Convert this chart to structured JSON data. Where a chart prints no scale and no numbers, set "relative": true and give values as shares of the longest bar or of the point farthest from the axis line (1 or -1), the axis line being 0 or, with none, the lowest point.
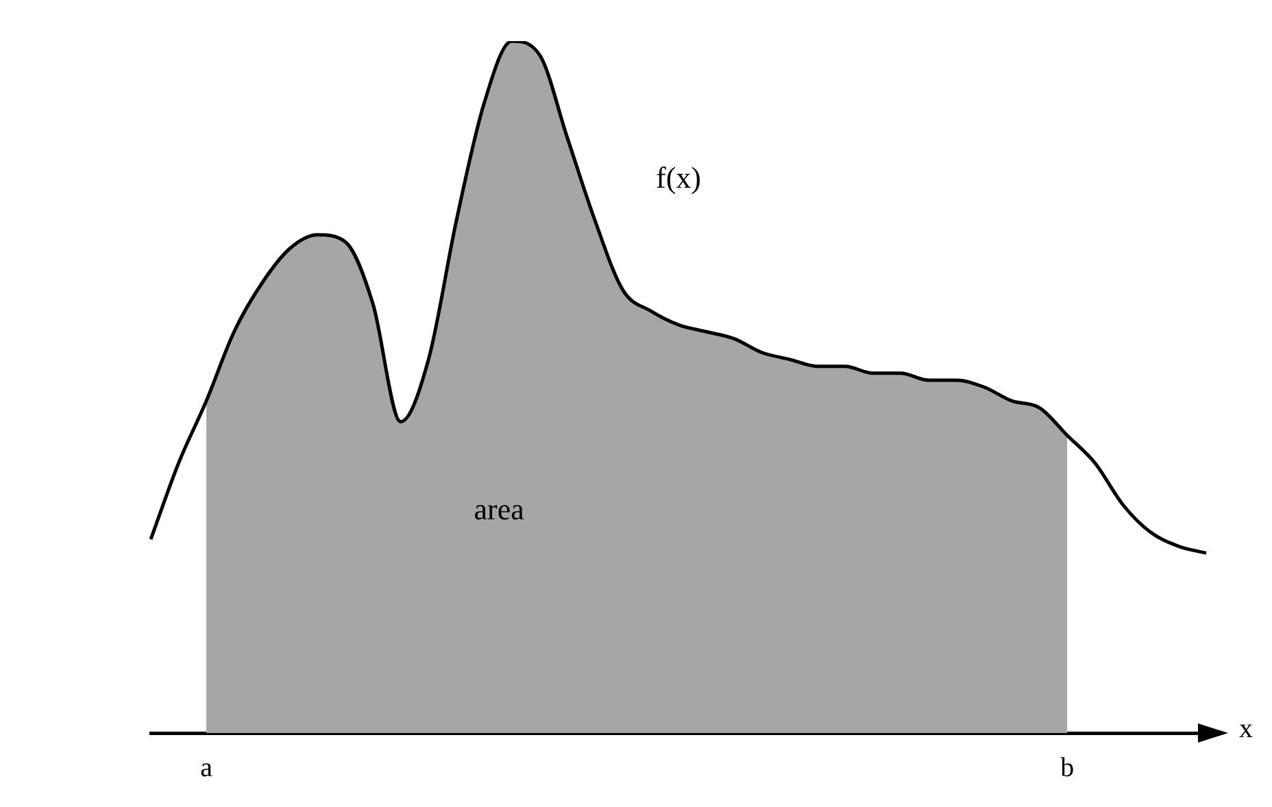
{
  "chart_data": {
    "type": "area",
    "relative": true,
    "xlabel": "x",
    "categories": [
      null,
      null,
      "a",
      null,
      null,
      null,
      null,
      null,
      null,
      null,
      null,
      null,
      null,
      null,
      null,
      null,
      null,
      null,
      null,
      null,
      null,
      null,
      null,
      null,
      null,
      null,
      null,
      null,
      null,
      null,
      null,
      null,
      null,
      "b",
      null,
      null,
      null,
      null,
      null
    ],
    "series": [
      {
        "color": "#a6a6a6",
        "values": [
          null,
          null,
          0.48,
          0.58,
          0.65,
          0.7,
          0.72,
          0.71,
          0.62,
          0.45,
          0.54,
          0.74,
          0.91,
          1,
          0.98,
          0.86,
          0.74,
          0.64,
          0.61,
          0.59,
          0.58,
          0.57,
          0.55,
          0.54,
          0.53,
          0.53,
          0.52,
          0.52,
          0.51,
          0.51,
          0.5,
          0.48,
          0.47,
          0.43,
          null,
          null,
          null,
          null,
          null
        ]
      },
      {
        "type": "line",
        "color": "#000000",
        "values": [
          0.28,
          0.39,
          0.48,
          0.58,
          0.65,
          0.7,
          0.72,
          0.71,
          0.62,
          0.45,
          0.54,
          0.74,
          0.91,
          1,
          0.98,
          0.86,
          0.74,
          0.64,
          0.61,
          0.59,
          0.58,
          0.57,
          0.55,
          0.54,
          0.53,
          0.53,
          0.52,
          0.52,
          0.51,
          0.51,
          0.5,
          0.48,
          0.47,
          0.43,
          0.39,
          0.33,
          0.29,
          0.27,
          0.26
        ]
      }
    ],
    "annotations": [
      "f(x)",
      "area"
    ],
    "marker": "none",
    "legend": false,
    "grid": false,
    "tick_labels": "x"
  }
}
